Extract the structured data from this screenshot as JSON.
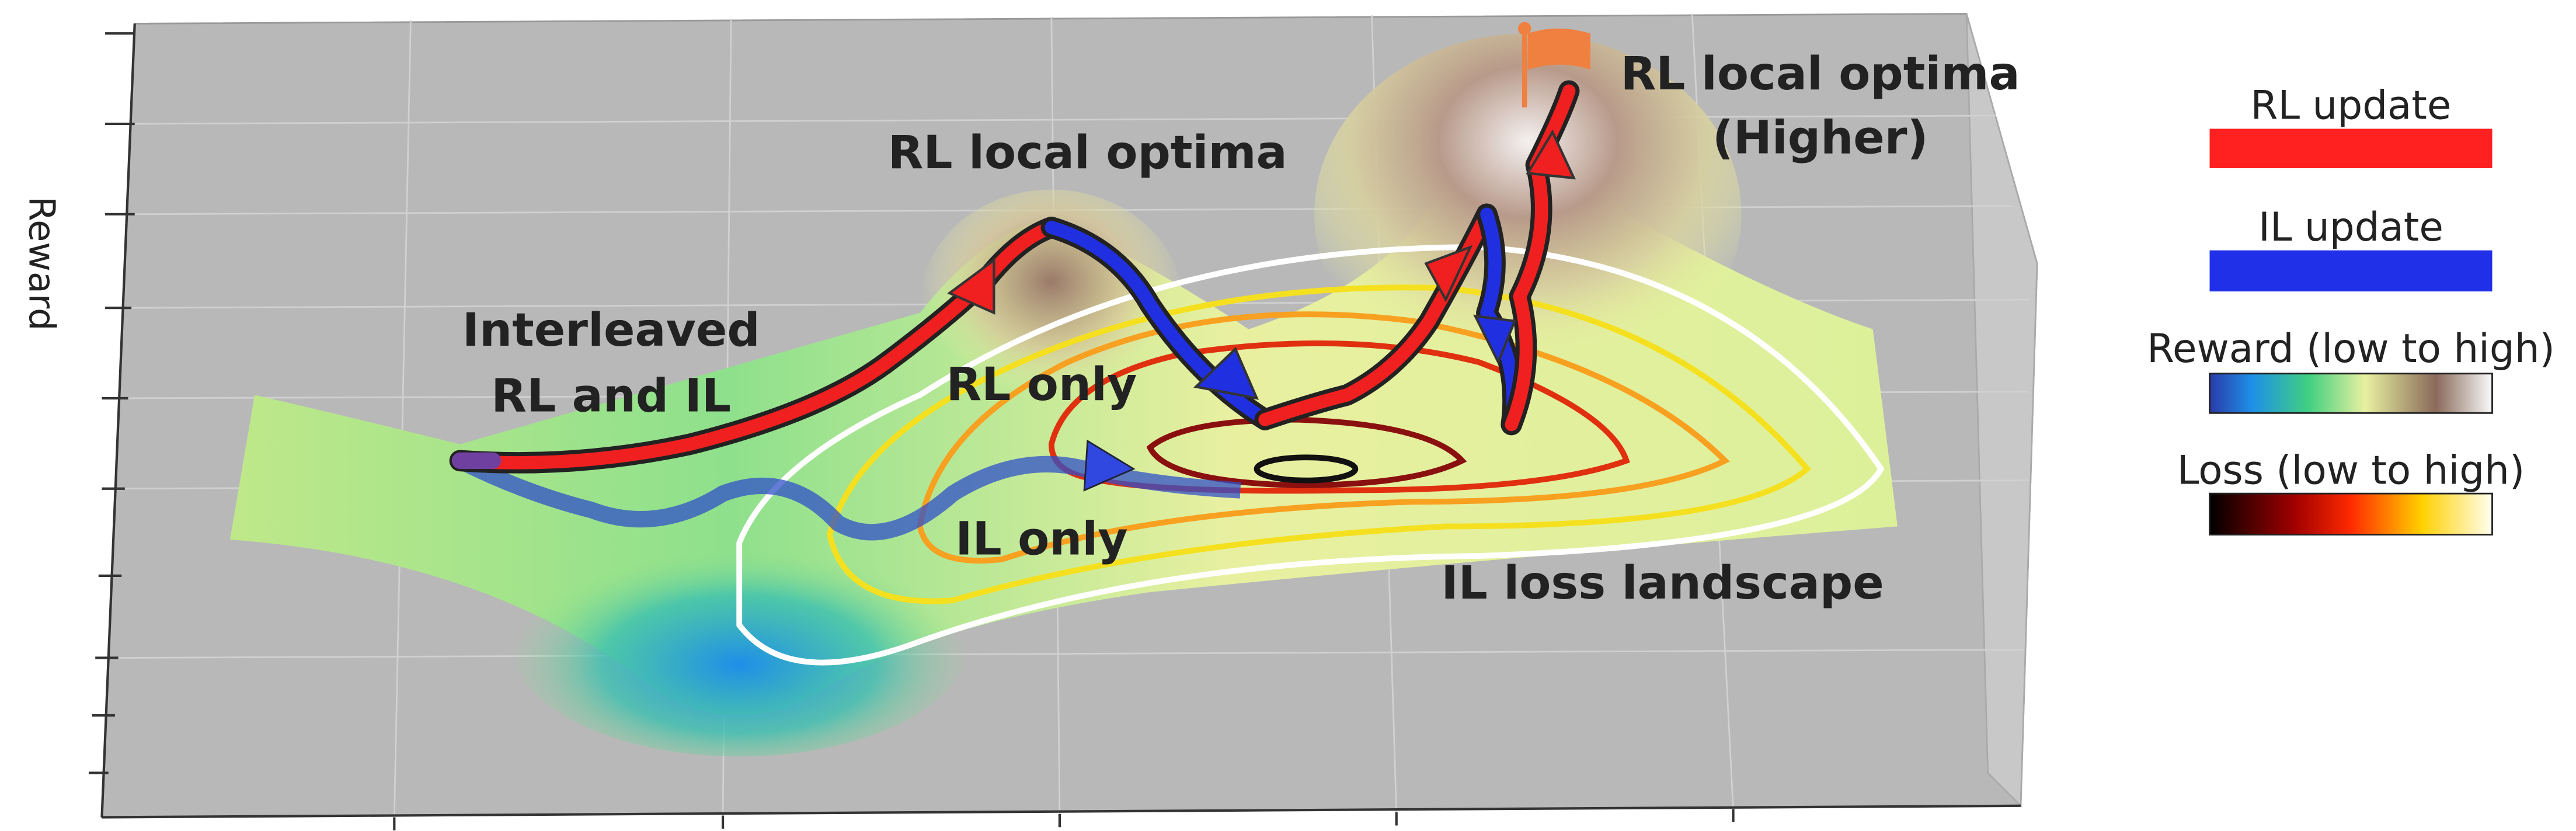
{
  "axis_label": "Reward",
  "annotations": [
    {
      "lines": [
        "RL local optima"
      ]
    },
    {
      "lines": [
        "RL local optima",
        "(Higher)"
      ]
    },
    {
      "lines": [
        "Interleaved",
        "RL and IL"
      ]
    },
    {
      "lines": [
        "RL only"
      ]
    },
    {
      "lines": [
        "IL only"
      ]
    },
    {
      "lines": [
        "IL loss landscape"
      ]
    }
  ],
  "legend": [
    {
      "label": "RL update"
    },
    {
      "label": "IL update"
    },
    {
      "label": "Reward (low to high)"
    },
    {
      "label": "Loss (low to high)"
    }
  ]
}
